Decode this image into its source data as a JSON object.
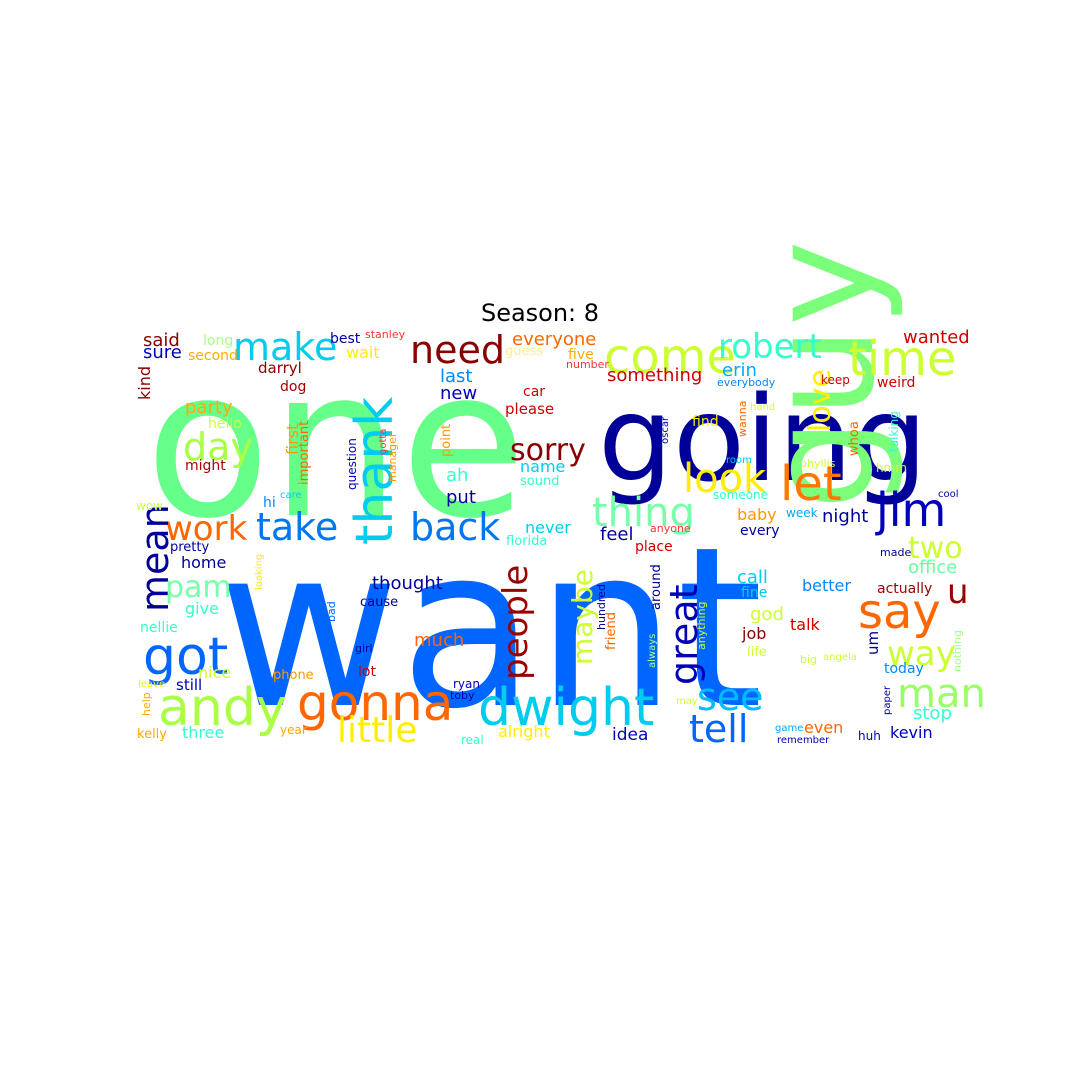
{
  "title": "Season: 8",
  "words": [
    {
      "text": "one",
      "color": "#66ff8a"
    },
    {
      "text": "want",
      "color": "#0066ff"
    },
    {
      "text": "going",
      "color": "#000099"
    },
    {
      "text": "guy",
      "color": "#7bff7a"
    },
    {
      "text": "come",
      "color": "#ccff33"
    },
    {
      "text": "time",
      "color": "#ccff33"
    },
    {
      "text": "thank",
      "color": "#00ccee"
    },
    {
      "text": "need",
      "color": "#880000"
    },
    {
      "text": "make",
      "color": "#00ccee"
    },
    {
      "text": "robert",
      "color": "#33ffcc"
    },
    {
      "text": "let",
      "color": "#ff7700"
    },
    {
      "text": "jim",
      "color": "#0000bb"
    },
    {
      "text": "gonna",
      "color": "#ff6600"
    },
    {
      "text": "andy",
      "color": "#aaff44"
    },
    {
      "text": "dwight",
      "color": "#00ccee"
    },
    {
      "text": "say",
      "color": "#ff6600"
    },
    {
      "text": "got",
      "color": "#0066ff"
    },
    {
      "text": "back",
      "color": "#0077ee"
    },
    {
      "text": "take",
      "color": "#0077ee"
    },
    {
      "text": "thing",
      "color": "#77ffaa"
    },
    {
      "text": "look",
      "color": "#ffee00"
    },
    {
      "text": "love",
      "color": "#ffee00"
    },
    {
      "text": "sorry",
      "color": "#880000"
    },
    {
      "text": "day",
      "color": "#aaff44"
    },
    {
      "text": "work",
      "color": "#ff6600"
    },
    {
      "text": "mean",
      "color": "#000099"
    },
    {
      "text": "pam",
      "color": "#77ffaa"
    },
    {
      "text": "man",
      "color": "#99ff66"
    },
    {
      "text": "great",
      "color": "#0000bb"
    },
    {
      "text": "people",
      "color": "#990000"
    },
    {
      "text": "maybe",
      "color": "#ccff33"
    },
    {
      "text": "see",
      "color": "#00bbff"
    },
    {
      "text": "tell",
      "color": "#0066ff"
    },
    {
      "text": "little",
      "color": "#ffee00"
    },
    {
      "text": "two",
      "color": "#ccff33"
    },
    {
      "text": "way",
      "color": "#ccff33"
    },
    {
      "text": "u",
      "color": "#990000"
    },
    {
      "text": "party",
      "color": "#ffaa00"
    },
    {
      "text": "said",
      "color": "#880000"
    },
    {
      "text": "sure",
      "color": "#0000bb"
    },
    {
      "text": "long",
      "color": "#aaff88"
    },
    {
      "text": "second",
      "color": "#ffaa00"
    },
    {
      "text": "best",
      "color": "#000099"
    },
    {
      "text": "stanley",
      "color": "#ff3333"
    },
    {
      "text": "wait",
      "color": "#ffee00"
    },
    {
      "text": "guess",
      "color": "#ffee88"
    },
    {
      "text": "everyone",
      "color": "#ff6600"
    },
    {
      "text": "five",
      "color": "#ffaa00"
    },
    {
      "text": "number",
      "color": "#ff3333"
    },
    {
      "text": "wanted",
      "color": "#cc0000"
    },
    {
      "text": "darryl",
      "color": "#880000"
    },
    {
      "text": "dog",
      "color": "#aa0000"
    },
    {
      "text": "kind",
      "color": "#880000"
    },
    {
      "text": "first",
      "color": "#ff9900"
    },
    {
      "text": "hello",
      "color": "#ccff33"
    },
    {
      "text": "might",
      "color": "#aa0000"
    },
    {
      "text": "important",
      "color": "#ff6600"
    },
    {
      "text": "question",
      "color": "#0000bb"
    },
    {
      "text": "manager",
      "color": "#ff9900"
    },
    {
      "text": "last",
      "color": "#0088ff"
    },
    {
      "text": "new",
      "color": "#0000bb"
    },
    {
      "text": "point",
      "color": "#ff9900"
    },
    {
      "text": "car",
      "color": "#cc0000"
    },
    {
      "text": "please",
      "color": "#cc0000"
    },
    {
      "text": "something",
      "color": "#cc0000"
    },
    {
      "text": "erin",
      "color": "#00aaff"
    },
    {
      "text": "everybody",
      "color": "#0088ff"
    },
    {
      "text": "room",
      "color": "#00ccee"
    },
    {
      "text": "keep",
      "color": "#cc0000"
    },
    {
      "text": "weird",
      "color": "#cc0000"
    },
    {
      "text": "hand",
      "color": "#ccff33"
    },
    {
      "text": "wanna",
      "color": "#ff6600"
    },
    {
      "text": "find",
      "color": "#ffee00"
    },
    {
      "text": "oscar",
      "color": "#0000bb"
    },
    {
      "text": "whoa",
      "color": "#ff6600"
    },
    {
      "text": "phyllis",
      "color": "#ccff33"
    },
    {
      "text": "talking",
      "color": "#33ffcc"
    },
    {
      "text": "hmm",
      "color": "#ccff33"
    },
    {
      "text": "ah",
      "color": "#33ffcc"
    },
    {
      "text": "name",
      "color": "#00ccee"
    },
    {
      "text": "sound",
      "color": "#33ffcc"
    },
    {
      "text": "put",
      "color": "#000099"
    },
    {
      "text": "never",
      "color": "#00ccee"
    },
    {
      "text": "florida",
      "color": "#33ffcc"
    },
    {
      "text": "feel",
      "color": "#000099"
    },
    {
      "text": "anyone",
      "color": "#ff3333"
    },
    {
      "text": "place",
      "color": "#cc0000"
    },
    {
      "text": "someone",
      "color": "#33ffcc"
    },
    {
      "text": "baby",
      "color": "#ff9900"
    },
    {
      "text": "every",
      "color": "#000099"
    },
    {
      "text": "week",
      "color": "#00aaff"
    },
    {
      "text": "night",
      "color": "#000099"
    },
    {
      "text": "cool",
      "color": "#000099"
    },
    {
      "text": "office",
      "color": "#66ff99"
    },
    {
      "text": "made",
      "color": "#000099"
    },
    {
      "text": "actually",
      "color": "#990000"
    },
    {
      "text": "call",
      "color": "#00ccee"
    },
    {
      "text": "fine",
      "color": "#00ccee"
    },
    {
      "text": "better",
      "color": "#0088ff"
    },
    {
      "text": "god",
      "color": "#ccff33"
    },
    {
      "text": "talk",
      "color": "#cc0000"
    },
    {
      "text": "job",
      "color": "#880000"
    },
    {
      "text": "life",
      "color": "#ccff33"
    },
    {
      "text": "um",
      "color": "#000099"
    },
    {
      "text": "big",
      "color": "#ccff33"
    },
    {
      "text": "angela",
      "color": "#ccff33"
    },
    {
      "text": "today",
      "color": "#0088ff"
    },
    {
      "text": "nothing",
      "color": "#aaff88"
    },
    {
      "text": "stop",
      "color": "#33ffcc"
    },
    {
      "text": "paper",
      "color": "#000099"
    },
    {
      "text": "even",
      "color": "#ff6600"
    },
    {
      "text": "kevin",
      "color": "#0000bb"
    },
    {
      "text": "game",
      "color": "#00aaff"
    },
    {
      "text": "remember",
      "color": "#0000bb"
    },
    {
      "text": "huh",
      "color": "#0000bb"
    },
    {
      "text": "idea",
      "color": "#0000bb"
    },
    {
      "text": "alright",
      "color": "#ffee00"
    },
    {
      "text": "real",
      "color": "#33ffcc"
    },
    {
      "text": "may",
      "color": "#ccff33"
    },
    {
      "text": "pretty",
      "color": "#000099"
    },
    {
      "text": "home",
      "color": "#000099"
    },
    {
      "text": "looking",
      "color": "#ffee00"
    },
    {
      "text": "give",
      "color": "#33ffcc"
    },
    {
      "text": "nellie",
      "color": "#33ffcc"
    },
    {
      "text": "nice",
      "color": "#ccff33"
    },
    {
      "text": "still",
      "color": "#0000bb"
    },
    {
      "text": "leave",
      "color": "#ffee00"
    },
    {
      "text": "help",
      "color": "#ffaa00"
    },
    {
      "text": "kelly",
      "color": "#ffaa00"
    },
    {
      "text": "three",
      "color": "#33ffcc"
    },
    {
      "text": "year",
      "color": "#ffaa00"
    },
    {
      "text": "phone",
      "color": "#ff9900"
    },
    {
      "text": "wow",
      "color": "#ccff33"
    },
    {
      "text": "hi",
      "color": "#0088ff"
    },
    {
      "text": "care",
      "color": "#00ccee"
    },
    {
      "text": "thought",
      "color": "#000099"
    },
    {
      "text": "cause",
      "color": "#000099"
    },
    {
      "text": "old",
      "color": "#0066ff"
    },
    {
      "text": "bad",
      "color": "#0066ff"
    },
    {
      "text": "girl",
      "color": "#000099"
    },
    {
      "text": "gotta",
      "color": "#ff3333"
    },
    {
      "text": "much",
      "color": "#ff6600"
    },
    {
      "text": "lot",
      "color": "#cc0000"
    },
    {
      "text": "ryan",
      "color": "#0000bb"
    },
    {
      "text": "toby",
      "color": "#000099"
    },
    {
      "text": "around",
      "color": "#000099"
    },
    {
      "text": "hundred",
      "color": "#000099"
    },
    {
      "text": "friend",
      "color": "#ff6600"
    },
    {
      "text": "always",
      "color": "#aaff88"
    },
    {
      "text": "anything",
      "color": "#ccff33"
    }
  ]
}
